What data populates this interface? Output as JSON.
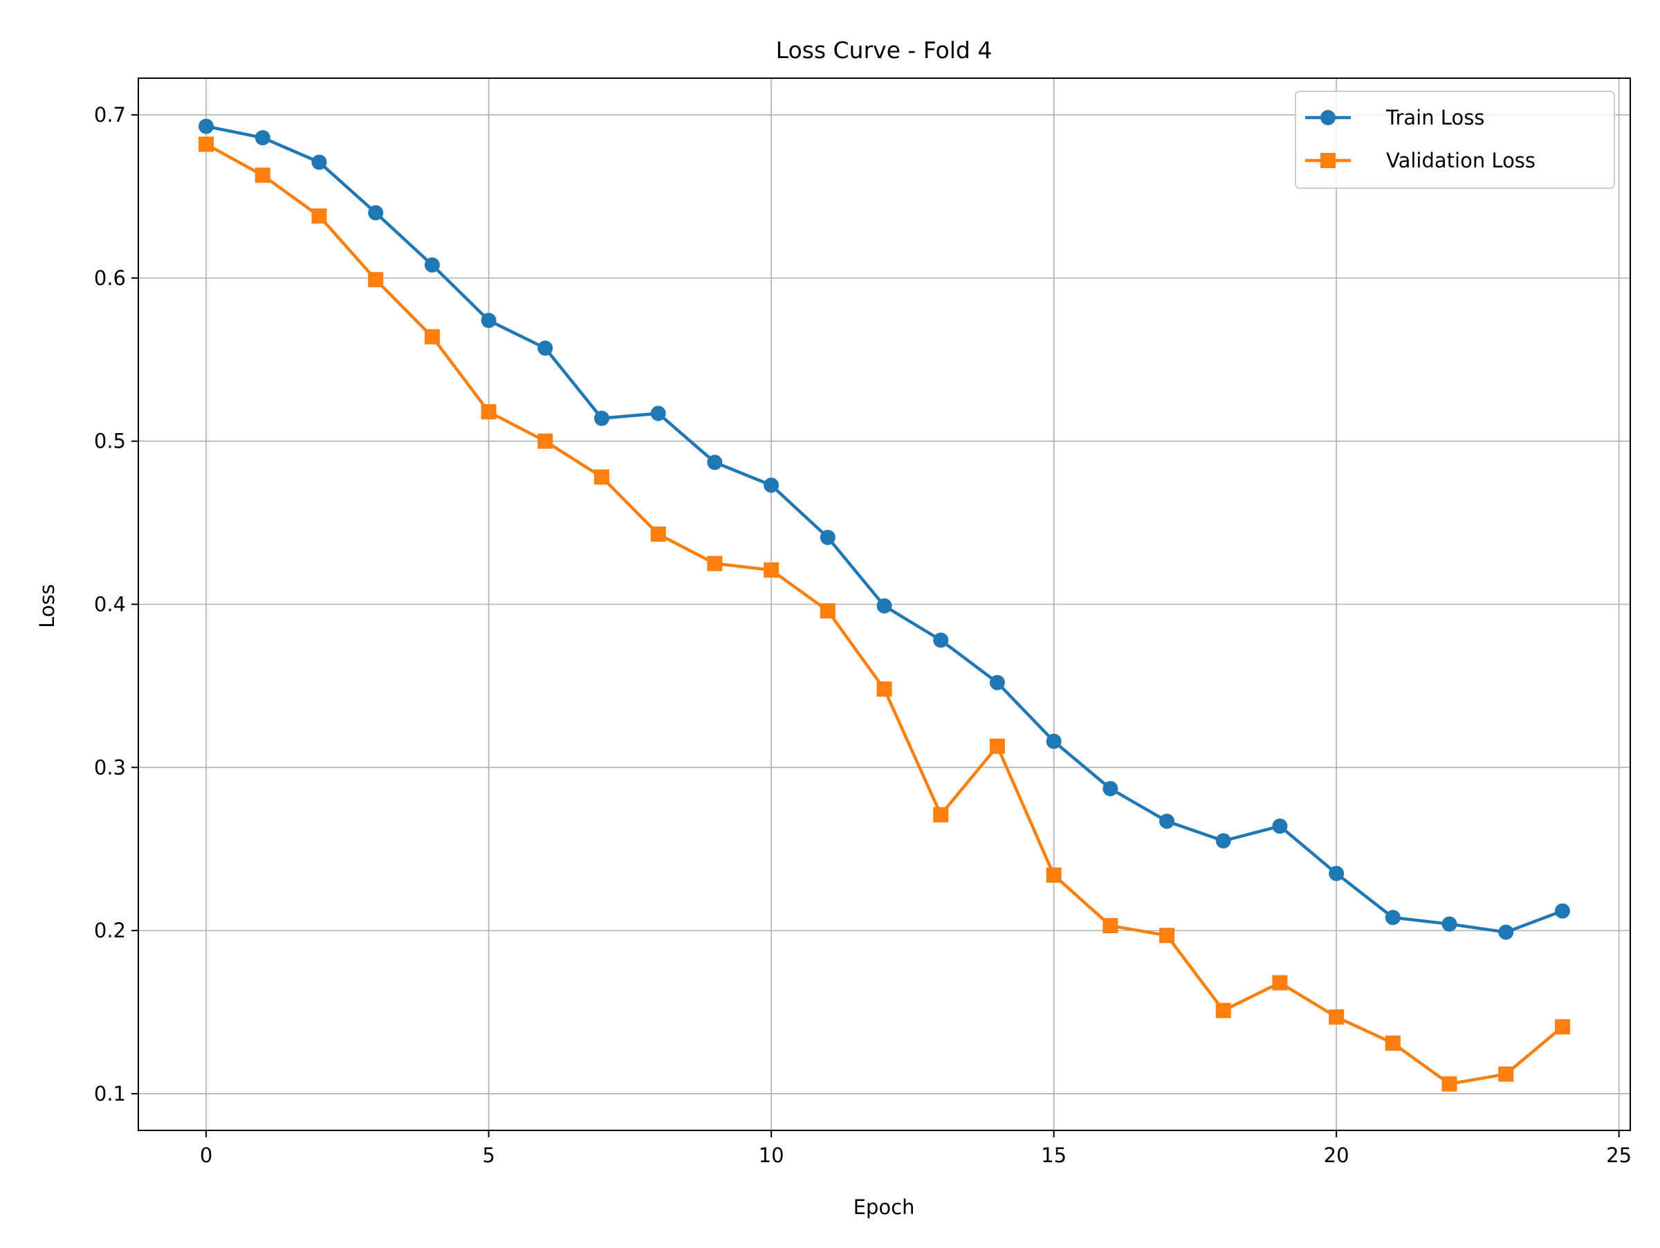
{
  "chart_data": {
    "type": "line",
    "title": "Loss Curve - Fold 4",
    "xlabel": "Epoch",
    "ylabel": "Loss",
    "xlim": [
      -1.2,
      25.2
    ],
    "ylim": [
      0.0775,
      0.7225
    ],
    "xticks": [
      0,
      5,
      10,
      15,
      20,
      25
    ],
    "yticks": [
      0.1,
      0.2,
      0.3,
      0.4,
      0.5,
      0.6,
      0.7
    ],
    "x_tick_labels": [
      "0",
      "5",
      "10",
      "15",
      "20",
      "25"
    ],
    "y_tick_labels": [
      "0.1",
      "0.2",
      "0.3",
      "0.4",
      "0.5",
      "0.6",
      "0.7"
    ],
    "grid": true,
    "legend_position": "top-right",
    "x": [
      0,
      1,
      2,
      3,
      4,
      5,
      6,
      7,
      8,
      9,
      10,
      11,
      12,
      13,
      14,
      15,
      16,
      17,
      18,
      19,
      20,
      21,
      22,
      23,
      24
    ],
    "series": [
      {
        "name": "Train Loss",
        "color": "#1f77b4",
        "marker": "circle",
        "values": [
          0.693,
          0.686,
          0.671,
          0.64,
          0.608,
          0.574,
          0.557,
          0.514,
          0.517,
          0.487,
          0.473,
          0.441,
          0.399,
          0.378,
          0.352,
          0.316,
          0.287,
          0.267,
          0.255,
          0.264,
          0.235,
          0.208,
          0.204,
          0.199,
          0.212
        ]
      },
      {
        "name": "Validation Loss",
        "color": "#ff7f0e",
        "marker": "square",
        "values": [
          0.682,
          0.663,
          0.638,
          0.599,
          0.564,
          0.518,
          0.5,
          0.478,
          0.443,
          0.425,
          0.421,
          0.396,
          0.348,
          0.271,
          0.313,
          0.234,
          0.203,
          0.197,
          0.151,
          0.168,
          0.147,
          0.131,
          0.106,
          0.112,
          0.141
        ]
      }
    ]
  }
}
